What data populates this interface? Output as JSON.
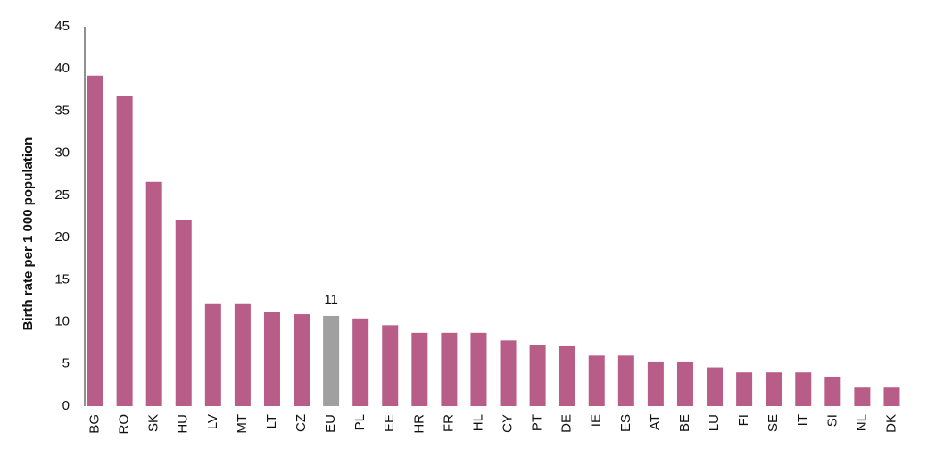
{
  "chart_data": {
    "type": "bar",
    "y_label": "Birth rate per 1 000 population",
    "categories": [
      "BG",
      "RO",
      "SK",
      "HU",
      "LV",
      "MT",
      "LT",
      "CZ",
      "EU",
      "PL",
      "EE",
      "HR",
      "FR",
      "HL",
      "CY",
      "PT",
      "DE",
      "IE",
      "ES",
      "AT",
      "BE",
      "LU",
      "FI",
      "SE",
      "IT",
      "SI",
      "NL",
      "DK"
    ],
    "values": [
      39.2,
      36.8,
      26.6,
      22.1,
      12.2,
      12.2,
      11.2,
      10.9,
      10.7,
      10.4,
      9.6,
      8.7,
      8.7,
      8.7,
      7.8,
      7.3,
      7.1,
      6.0,
      6.0,
      5.3,
      5.3,
      4.6,
      4.0,
      4.0,
      4.0,
      3.5,
      2.2,
      2.2
    ],
    "value_labels": [
      null,
      null,
      null,
      null,
      null,
      null,
      null,
      null,
      "11",
      null,
      null,
      null,
      null,
      null,
      null,
      null,
      null,
      null,
      null,
      null,
      null,
      null,
      null,
      null,
      null,
      null,
      null,
      null
    ],
    "colors": [
      "#b85d88",
      "#b85d88",
      "#b85d88",
      "#b85d88",
      "#b85d88",
      "#b85d88",
      "#b85d88",
      "#b85d88",
      "#a0a0a0",
      "#b85d88",
      "#b85d88",
      "#b85d88",
      "#b85d88",
      "#b85d88",
      "#b85d88",
      "#b85d88",
      "#b85d88",
      "#b85d88",
      "#b85d88",
      "#b85d88",
      "#b85d88",
      "#b85d88",
      "#b85d88",
      "#b85d88",
      "#b85d88",
      "#b85d88",
      "#b85d88",
      "#b85d88"
    ],
    "ylim": [
      0,
      45
    ],
    "yticks": [
      0,
      5,
      10,
      15,
      20,
      25,
      30,
      35,
      40,
      45
    ],
    "grid": false
  }
}
